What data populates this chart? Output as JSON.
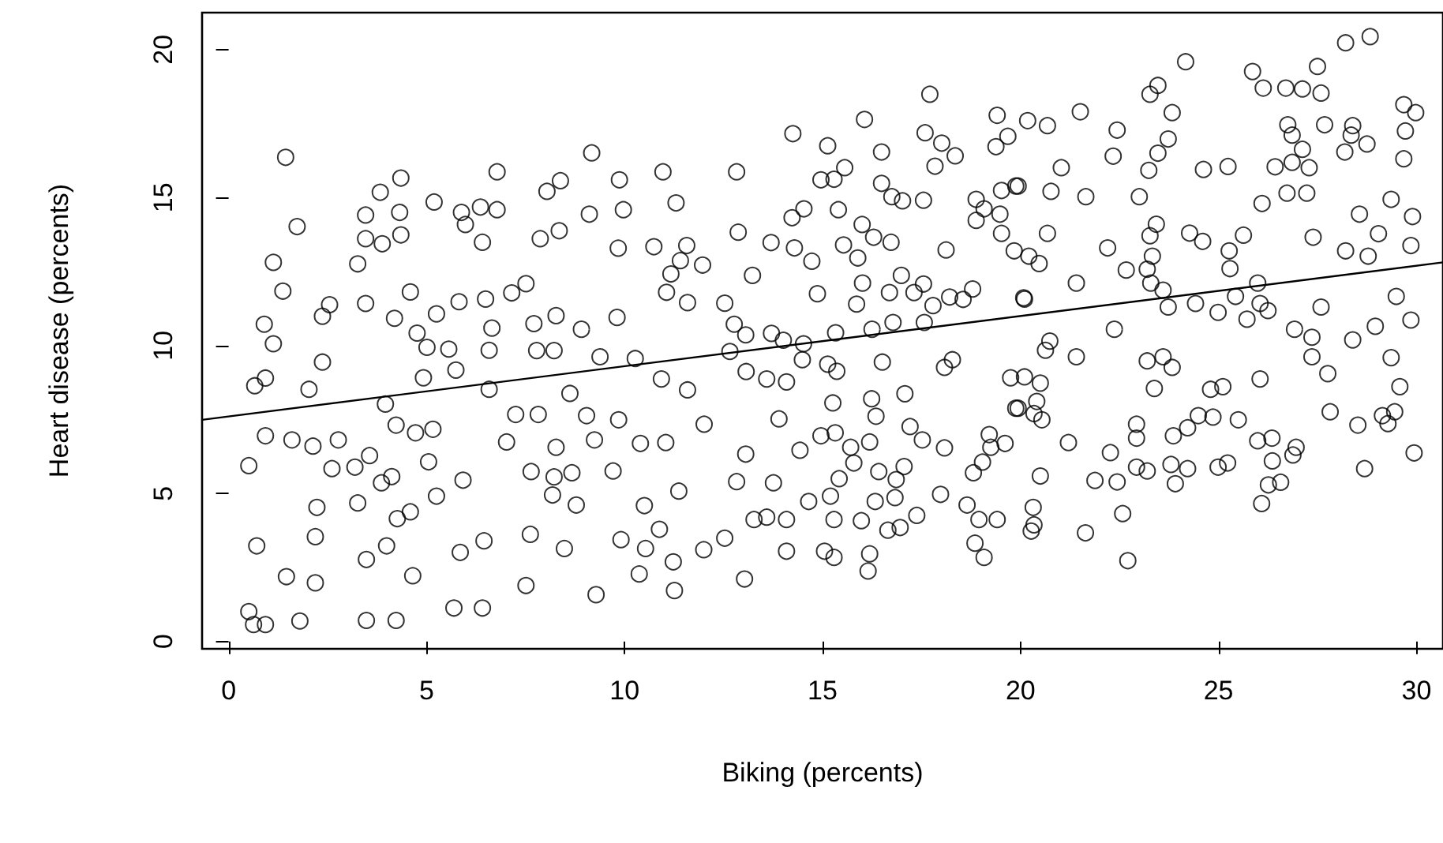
{
  "chart_data": {
    "type": "scatter",
    "xlabel": "Biking (percents)",
    "ylabel": "Heart disease (percents)",
    "xlim": [
      -0.67,
      30.67
    ],
    "ylim": [
      -0.25,
      21.25
    ],
    "xticks": [
      0,
      5,
      10,
      15,
      20,
      25,
      30
    ],
    "yticks": [
      0,
      5,
      10,
      15,
      20
    ],
    "grid": false,
    "marker": "circle",
    "series": [
      {
        "color": "#000000",
        "x": [
          1.44,
          1.73,
          1.13,
          1.37,
          0.9,
          1.13,
          0.66,
          0.93,
          0.51,
          0.93,
          0.71,
          0.51,
          0.63,
          0.93,
          1.8,
          1.46,
          1.6,
          2.13,
          2.77,
          2.23,
          2.19,
          2.19,
          2.03,
          2.37,
          2.37,
          2.55,
          2.61,
          3.19,
          3.56,
          3.26,
          3.48,
          3.48,
          4.23,
          3.46,
          3.26,
          3.46,
          3.46,
          3.83,
          4.35,
          4.32,
          4.35,
          3.88,
          4.19,
          4.76,
          4.59,
          5.01,
          4.92,
          3.96,
          4.23,
          4.72,
          5.05,
          3.86,
          4.12,
          4.26,
          4.59,
          3.99,
          4.65,
          5.25,
          5.16,
          5.19,
          5.25,
          5.56,
          5.74,
          5.88,
          5.98,
          6.36,
          6.78,
          6.78,
          6.41,
          5.82,
          6.49,
          6.65,
          6.58,
          6.58,
          7.15,
          7.51,
          7.71,
          8.27,
          7.78,
          8.22,
          5.92,
          6.45,
          5.85,
          5.69,
          6.41,
          7.02,
          7.25,
          7.82,
          7.64,
          8.18,
          8.22,
          8.67,
          8.78,
          7.62,
          8.48,
          7.51,
          9.28,
          9.24,
          9.04,
          8.62,
          8.27,
          7.87,
          8.35,
          8.04,
          8.38,
          9.17,
          9.11,
          8.91,
          9.38,
          9.87,
          9.97,
          10.97,
          11.3,
          9.84,
          10.74,
          11.57,
          11.41,
          11.17,
          11.97,
          11.06,
          11.59,
          9.81,
          10.27,
          10.93,
          11.59,
          9.85,
          10.4,
          11.04,
          12.01,
          9.71,
          11.37,
          10.5,
          10.88,
          9.91,
          10.53,
          11.23,
          10.37,
          11.26,
          12.0,
          12.53,
          13.03,
          13.27,
          13.59,
          14.09,
          14.09,
          12.83,
          13.76,
          13.06,
          14.43,
          13.9,
          12.83,
          12.87,
          13.23,
          12.53,
          12.77,
          13.06,
          12.66,
          13.07,
          13.59,
          14.09,
          13.71,
          14.01,
          14.52,
          14.49,
          13.7,
          14.29,
          14.23,
          14.53,
          14.25,
          14.73,
          14.87,
          15.13,
          14.96,
          15.29,
          15.56,
          15.4,
          15.53,
          15.89,
          16.0,
          16.29,
          16.73,
          16.06,
          16.49,
          16.49,
          16.75,
          17.02,
          17.55,
          17.71,
          17.59,
          18.01,
          17.84,
          18.35,
          18.12,
          16.01,
          15.86,
          16.69,
          16.99,
          17.31,
          17.55,
          17.79,
          17.57,
          16.78,
          16.25,
          15.33,
          15.13,
          15.36,
          16.51,
          18.08,
          18.28,
          18.21,
          18.79,
          18.55,
          18.88,
          19.08,
          18.88,
          19.48,
          19.52,
          19.88,
          19.52,
          19.41,
          19.68,
          19.38,
          19.84,
          20.08,
          19.75,
          19.88,
          15.26,
          16.24,
          16.35,
          17.08,
          17.21,
          17.52,
          18.08,
          16.19,
          15.71,
          15.79,
          14.96,
          15.32,
          15.42,
          15.2,
          14.65,
          15.29,
          15.05,
          15.29,
          15.98,
          16.19,
          16.15,
          16.33,
          16.42,
          16.86,
          17.06,
          16.83,
          16.65,
          16.96,
          17.38,
          17.98,
          18.65,
          18.95,
          19.41,
          18.85,
          19.08,
          18.81,
          19.04,
          19.25,
          19.21,
          19.61,
          20.18,
          20.68,
          21.51,
          22.44,
          22.34,
          21.03,
          19.94,
          20.77,
          21.65,
          23.0,
          23.24,
          23.47,
          23.73,
          23.83,
          23.27,
          23.47,
          24.17,
          24.62,
          25.24,
          25.86,
          26.13,
          26.7,
          27.12,
          27.59,
          27.5,
          28.21,
          28.83,
          26.75,
          26.86,
          27.12,
          27.68,
          26.43,
          26.86,
          27.29,
          26.73,
          27.23,
          28.19,
          28.35,
          28.75,
          28.39,
          29.68,
          29.98,
          29.72,
          29.68,
          26.1,
          29.36,
          28.56,
          29.9,
          29.04,
          29.86,
          28.21,
          28.78,
          27.39,
          25.63,
          25.27,
          25.29,
          24.27,
          24.6,
          23.43,
          23.27,
          23.33,
          23.2,
          23.29,
          23.6,
          23.73,
          22.67,
          22.2,
          20.68,
          20.21,
          20.47,
          21.41,
          20.1,
          24.42,
          24.99,
          25.43,
          25.72,
          25.99,
          26.25,
          26.05,
          26.92,
          27.36,
          27.59,
          27.36,
          27.76,
          28.39,
          28.96,
          29.49,
          29.86,
          29.36,
          29.58,
          22.37,
          21.41,
          20.74,
          20.63,
          20.1,
          20.5,
          20.41,
          20.34,
          20.54,
          19.94,
          23.2,
          23.6,
          23.83,
          23.38,
          24.8,
          25.11,
          26.05,
          24.49,
          24.86,
          25.5,
          24.22,
          23.86,
          22.93,
          22.93,
          21.21,
          22.27,
          21.88,
          22.44,
          22.93,
          23.2,
          23.8,
          23.91,
          24.22,
          24.99,
          25.23,
          25.99,
          26.35,
          26.36,
          26.96,
          26.88,
          26.26,
          26.57,
          26.09,
          27.82,
          28.52,
          29.14,
          29.45,
          29.28,
          29.94,
          28.69,
          20.5,
          20.32,
          20.34,
          20.27,
          21.64,
          22.58,
          22.71
        ],
        "values": [
          16.36,
          14.02,
          12.81,
          11.84,
          10.72,
          10.06,
          8.64,
          8.9,
          5.94,
          6.95,
          3.23,
          1.01,
          0.57,
          0.57,
          0.69,
          2.19,
          6.81,
          6.6,
          6.81,
          4.53,
          3.54,
          1.98,
          8.52,
          9.44,
          10.99,
          11.38,
          5.84,
          5.89,
          6.28,
          4.68,
          2.77,
          0.71,
          0.71,
          11.42,
          12.76,
          13.61,
          14.41,
          15.18,
          15.66,
          14.5,
          13.74,
          13.44,
          10.92,
          10.42,
          11.81,
          9.94,
          8.91,
          8.02,
          7.31,
          7.05,
          6.07,
          5.36,
          5.57,
          4.15,
          4.38,
          3.23,
          2.22,
          4.91,
          7.17,
          14.85,
          11.07,
          9.88,
          9.17,
          14.5,
          14.09,
          14.68,
          14.59,
          15.87,
          13.49,
          11.48,
          11.57,
          10.59,
          9.84,
          8.52,
          11.78,
          12.09,
          10.74,
          11.01,
          9.83,
          9.83,
          5.45,
          3.4,
          3.01,
          1.13,
          1.13,
          6.74,
          7.67,
          7.67,
          5.74,
          4.95,
          5.56,
          5.7,
          4.61,
          3.62,
          3.14,
          1.89,
          1.58,
          6.81,
          7.63,
          8.38,
          6.56,
          13.61,
          13.88,
          15.21,
          15.57,
          16.51,
          14.44,
          10.55,
          9.62,
          15.6,
          14.59,
          15.87,
          14.82,
          13.29,
          13.34,
          13.38,
          12.87,
          12.42,
          12.72,
          11.8,
          11.45,
          10.95,
          9.56,
          8.87,
          8.5,
          7.49,
          6.69,
          6.72,
          7.34,
          5.76,
          5.08,
          4.59,
          3.79,
          3.44,
          3.14,
          2.69,
          2.28,
          1.72,
          3.1,
          3.49,
          2.11,
          4.12,
          4.2,
          4.12,
          3.05,
          5.4,
          5.36,
          6.33,
          6.46,
          7.52,
          15.87,
          13.83,
          12.37,
          11.43,
          10.72,
          10.36,
          9.8,
          9.12,
          8.87,
          8.77,
          10.41,
          10.18,
          10.06,
          9.52,
          13.48,
          13.3,
          14.32,
          14.62,
          17.16,
          12.85,
          11.75,
          16.75,
          15.6,
          15.62,
          16.01,
          14.59,
          13.4,
          12.96,
          14.09,
          13.66,
          13.49,
          17.64,
          16.54,
          15.48,
          15.03,
          14.89,
          14.91,
          18.49,
          17.19,
          16.84,
          16.06,
          16.41,
          13.23,
          12.11,
          11.4,
          11.79,
          12.37,
          11.79,
          12.08,
          11.35,
          10.78,
          10.78,
          10.55,
          10.43,
          9.37,
          9.13,
          9.44,
          9.26,
          9.52,
          11.64,
          11.91,
          11.56,
          14.94,
          14.62,
          14.23,
          14.44,
          13.79,
          15.39,
          15.24,
          17.78,
          17.07,
          16.72,
          13.2,
          11.61,
          8.91,
          7.88,
          8.06,
          8.2,
          7.61,
          8.37,
          7.26,
          6.81,
          6.54,
          6.74,
          6.56,
          6.03,
          6.95,
          7.05,
          5.5,
          4.91,
          4.73,
          4.12,
          3.05,
          2.84,
          4.08,
          2.96,
          2.38,
          4.73,
          5.74,
          5.47,
          5.91,
          4.86,
          3.76,
          3.85,
          4.26,
          4.97,
          4.61,
          4.12,
          4.12,
          3.32,
          2.84,
          5.7,
          6.06,
          6.56,
          6.99,
          6.69,
          17.6,
          17.43,
          17.9,
          17.28,
          16.4,
          16.01,
          15.39,
          15.21,
          15.03,
          15.03,
          15.92,
          16.5,
          16.98,
          17.87,
          18.49,
          18.79,
          19.59,
          15.95,
          16.05,
          19.26,
          18.7,
          18.7,
          18.67,
          18.53,
          19.43,
          20.23,
          20.44,
          17.46,
          17.11,
          16.63,
          17.46,
          16.04,
          16.19,
          16.01,
          15.15,
          15.15,
          16.54,
          17.11,
          16.81,
          17.43,
          18.14,
          17.87,
          17.25,
          16.31,
          14.8,
          14.94,
          14.44,
          14.36,
          13.78,
          13.38,
          13.2,
          13.02,
          13.66,
          13.73,
          13.2,
          12.6,
          13.8,
          13.52,
          14.1,
          13.71,
          13.02,
          12.58,
          12.11,
          11.87,
          11.3,
          12.55,
          13.3,
          13.79,
          13.02,
          12.77,
          12.11,
          11.57,
          11.42,
          11.12,
          11.66,
          10.89,
          12.11,
          11.18,
          11.42,
          10.55,
          10.28,
          11.3,
          9.62,
          9.05,
          10.19,
          10.65,
          11.66,
          10.86,
          9.59,
          8.61,
          10.55,
          9.62,
          10.15,
          9.84,
          8.94,
          8.73,
          8.11,
          7.7,
          7.49,
          7.88,
          9.48,
          9.62,
          9.26,
          8.55,
          8.52,
          8.61,
          8.87,
          7.63,
          7.58,
          7.49,
          7.22,
          6.95,
          7.34,
          6.87,
          6.72,
          6.38,
          5.44,
          5.39,
          5.89,
          5.76,
          5.98,
          5.33,
          5.84,
          5.89,
          6.03,
          6.78,
          6.87,
          6.1,
          6.56,
          6.3,
          5.29,
          5.38,
          4.66,
          7.76,
          7.31,
          7.63,
          7.76,
          7.36,
          6.37,
          5.84,
          5.59,
          4.53,
          3.94,
          3.73,
          3.67,
          4.32,
          2.73
        ]
      },
      {
        "type": "line",
        "marker": "none",
        "color": "#000000",
        "x": [
          -0.67,
          30.67
        ],
        "values": [
          7.49,
          12.81
        ]
      }
    ]
  }
}
